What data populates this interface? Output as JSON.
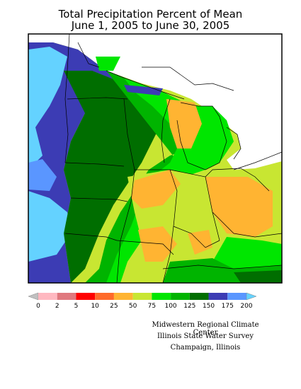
{
  "title_line1": "Total Precipitation Percent of Mean",
  "title_line2": "June 1, 2005 to June 30, 2005",
  "legend": {
    "colors": [
      "#c0c0c0",
      "#ffb8c0",
      "#e0787e",
      "#ff0000",
      "#ff6a2a",
      "#ffb432",
      "#c8e632",
      "#00e600",
      "#00b400",
      "#006e00",
      "#3c3cb4",
      "#5a96ff",
      "#64d2ff"
    ],
    "labels": [
      "0",
      "2",
      "5",
      "10",
      "25",
      "50",
      "75",
      "100",
      "125",
      "150",
      "175",
      "200"
    ]
  },
  "credits": {
    "line1": "Midwestern Regional Climate Center",
    "line2": "Illinois State Water Survey",
    "line3": "Champaign, Illinois"
  }
}
